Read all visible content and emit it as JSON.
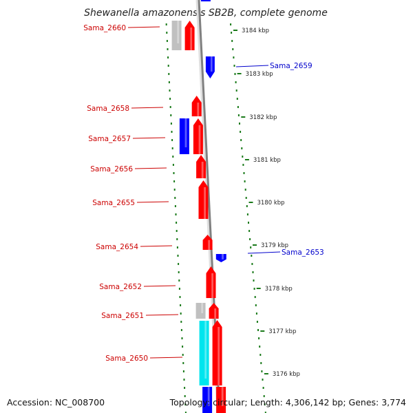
{
  "title": "Shewanella amazonensis SB2B, complete genome",
  "footer": {
    "accession": "Accession: NC_008700",
    "topology": "Topology: circular; Length: 4,306,142 bp; Genes: 3,774"
  },
  "colors": {
    "forward_gene": "#ff0000",
    "reverse_gene": "#0000ff",
    "other_gene": "#00e5ee",
    "gray_feature": "#c0c0c0",
    "tick": "#1a7a1a",
    "backbone": "#808080"
  },
  "ticks": [
    "3184 kbp",
    "3183 kbp",
    "3182 kbp",
    "3181 kbp",
    "3180 kbp",
    "3179 kbp",
    "3178 kbp",
    "3177 kbp",
    "3176 kbp"
  ],
  "genes": [
    {
      "name": "Sama_2660",
      "side": "left",
      "color": "#cc0000"
    },
    {
      "name": "Sama_2659",
      "side": "right",
      "color": "#0000cc"
    },
    {
      "name": "Sama_2658",
      "side": "left",
      "color": "#cc0000"
    },
    {
      "name": "Sama_2657",
      "side": "left",
      "color": "#cc0000"
    },
    {
      "name": "Sama_2656",
      "side": "left",
      "color": "#cc0000"
    },
    {
      "name": "Sama_2655",
      "side": "left",
      "color": "#cc0000"
    },
    {
      "name": "Sama_2654",
      "side": "left",
      "color": "#cc0000"
    },
    {
      "name": "Sama_2653",
      "side": "right",
      "color": "#0000cc"
    },
    {
      "name": "Sama_2652",
      "side": "left",
      "color": "#cc0000"
    },
    {
      "name": "Sama_2651",
      "side": "left",
      "color": "#cc0000"
    },
    {
      "name": "Sama_2650",
      "side": "left",
      "color": "#cc0000"
    }
  ]
}
